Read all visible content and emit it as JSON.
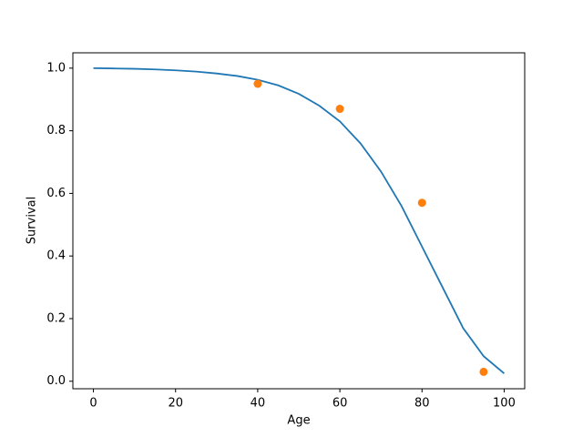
{
  "chart_data": {
    "type": "line",
    "x_label": "Age",
    "y_label": "Survival",
    "xlim": [
      -5,
      105
    ],
    "ylim": [
      -0.024,
      1.049
    ],
    "xticks": [
      0,
      20,
      40,
      60,
      80,
      100
    ],
    "yticks": [
      {
        "value": 0,
        "label": "0.0"
      },
      0.2,
      0.4,
      0.6,
      0.8,
      {
        "value": 1,
        "label": "1.0"
      }
    ],
    "series": [
      {
        "type": "line",
        "color": "#1f77b4",
        "x": [
          0,
          5,
          10,
          15,
          20,
          25,
          30,
          35,
          40,
          45,
          50,
          55,
          60,
          65,
          70,
          75,
          80,
          85,
          90,
          95,
          100
        ],
        "values": [
          1.0,
          0.999,
          0.998,
          0.996,
          0.993,
          0.989,
          0.983,
          0.975,
          0.963,
          0.945,
          0.918,
          0.88,
          0.83,
          0.76,
          0.67,
          0.56,
          0.43,
          0.3,
          0.17,
          0.08,
          0.025
        ]
      },
      {
        "type": "scatter",
        "color": "#ff7f0e",
        "x": [
          40,
          60,
          80,
          95
        ],
        "values": [
          0.95,
          0.87,
          0.57,
          0.03
        ]
      }
    ]
  }
}
